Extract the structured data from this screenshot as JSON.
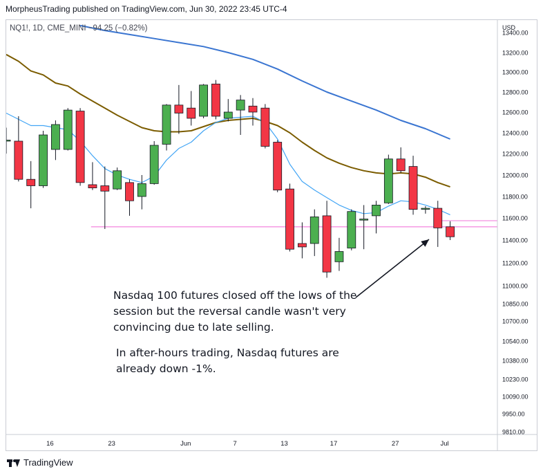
{
  "header": {
    "published": "MorpheusTrading published on TradingView.com, Jun 30, 2022 23:45 UTC-4"
  },
  "legend": {
    "symbol": "NQ1!, 1D, CME_MINI",
    "change": "−94.25 (−0.82%)"
  },
  "annotations": {
    "main": "Nasdaq 100 futures closed off the lows of the\nsession but the reversal candle wasn't very\nconvincing due to late selling.",
    "after_hours": "In after-hours trading, Nasdaq futures are\nalready down -1%."
  },
  "footer": {
    "brand": "TradingView"
  },
  "colors": {
    "up": "#4caf50",
    "down": "#f23645",
    "ma_fast": "#42a5f5",
    "ma_mid": "#7b5c00",
    "ma_slow": "#3a75d1",
    "support": "#f48fe0"
  },
  "chart_data": {
    "type": "candlestick",
    "currency": "USD",
    "y_ticks": [
      "13400.00",
      "13200.00",
      "13000.00",
      "12800.00",
      "12600.00",
      "12400.00",
      "12200.00",
      "12000.00",
      "11800.00",
      "11600.00",
      "11400.00",
      "11200.00",
      "11000.00",
      "10850.00",
      "10700.00",
      "10540.00",
      "10380.00",
      "10230.00",
      "10090.00",
      "9950.00",
      "9810.00"
    ],
    "x_ticks": [
      {
        "label": "16",
        "i": 4
      },
      {
        "label": "23",
        "i": 9
      },
      {
        "label": "Jun",
        "i": 15
      },
      {
        "label": "7",
        "i": 19
      },
      {
        "label": "13",
        "i": 23
      },
      {
        "label": "17",
        "i": 27
      },
      {
        "label": "27",
        "i": 32
      },
      {
        "label": "Jul",
        "i": 36
      }
    ],
    "candles": [
      {
        "o": 12330,
        "h": 12450,
        "l": 12200,
        "c": 12330
      },
      {
        "o": 12320,
        "h": 12560,
        "l": 11940,
        "c": 11960
      },
      {
        "o": 11960,
        "h": 12130,
        "l": 11690,
        "c": 11900
      },
      {
        "o": 11900,
        "h": 12420,
        "l": 11880,
        "c": 12380
      },
      {
        "o": 12240,
        "h": 12520,
        "l": 12140,
        "c": 12480
      },
      {
        "o": 12240,
        "h": 12640,
        "l": 12230,
        "c": 12620
      },
      {
        "o": 12610,
        "h": 12640,
        "l": 11900,
        "c": 11930
      },
      {
        "o": 11910,
        "h": 12120,
        "l": 11860,
        "c": 11880
      },
      {
        "o": 11900,
        "h": 12080,
        "l": 11500,
        "c": 11850
      },
      {
        "o": 11870,
        "h": 12070,
        "l": 11860,
        "c": 12040
      },
      {
        "o": 11930,
        "h": 11960,
        "l": 11620,
        "c": 11760
      },
      {
        "o": 11800,
        "h": 12000,
        "l": 11680,
        "c": 11920
      },
      {
        "o": 11920,
        "h": 12320,
        "l": 11910,
        "c": 12280
      },
      {
        "o": 12290,
        "h": 12680,
        "l": 12230,
        "c": 12670
      },
      {
        "o": 12670,
        "h": 12870,
        "l": 12390,
        "c": 12590
      },
      {
        "o": 12640,
        "h": 12810,
        "l": 12470,
        "c": 12540
      },
      {
        "o": 12560,
        "h": 12880,
        "l": 12540,
        "c": 12870
      },
      {
        "o": 12880,
        "h": 12920,
        "l": 12530,
        "c": 12560
      },
      {
        "o": 12540,
        "h": 12730,
        "l": 12510,
        "c": 12600
      },
      {
        "o": 12620,
        "h": 12770,
        "l": 12380,
        "c": 12720
      },
      {
        "o": 12660,
        "h": 12740,
        "l": 12470,
        "c": 12600
      },
      {
        "o": 12640,
        "h": 12680,
        "l": 12250,
        "c": 12270
      },
      {
        "o": 12310,
        "h": 12330,
        "l": 11840,
        "c": 11860
      },
      {
        "o": 11870,
        "h": 11920,
        "l": 11300,
        "c": 11320
      },
      {
        "o": 11370,
        "h": 11560,
        "l": 11240,
        "c": 11340
      },
      {
        "o": 11370,
        "h": 11680,
        "l": 11260,
        "c": 11610
      },
      {
        "o": 11620,
        "h": 11760,
        "l": 11070,
        "c": 11120
      },
      {
        "o": 11210,
        "h": 11420,
        "l": 11130,
        "c": 11300
      },
      {
        "o": 11330,
        "h": 11680,
        "l": 11310,
        "c": 11660
      },
      {
        "o": 11580,
        "h": 11720,
        "l": 11320,
        "c": 11590
      },
      {
        "o": 11620,
        "h": 11760,
        "l": 11460,
        "c": 11720
      },
      {
        "o": 11740,
        "h": 12190,
        "l": 11730,
        "c": 12150
      },
      {
        "o": 12150,
        "h": 12260,
        "l": 12020,
        "c": 12040
      },
      {
        "o": 12080,
        "h": 12180,
        "l": 11630,
        "c": 11680
      },
      {
        "o": 11690,
        "h": 11710,
        "l": 11640,
        "c": 11690
      },
      {
        "o": 11690,
        "h": 11760,
        "l": 11340,
        "c": 11510
      },
      {
        "o": 11520,
        "h": 11570,
        "l": 11400,
        "c": 11430
      }
    ],
    "ma_fast": [
      [
        0,
        12590
      ],
      [
        1,
        12530
      ],
      [
        2,
        12470
      ],
      [
        3,
        12470
      ],
      [
        4,
        12450
      ],
      [
        5,
        12430
      ],
      [
        6,
        12320
      ],
      [
        7,
        12180
      ],
      [
        8,
        12060
      ],
      [
        9,
        12000
      ],
      [
        10,
        11960
      ],
      [
        11,
        11930
      ],
      [
        12,
        11990
      ],
      [
        13,
        12140
      ],
      [
        14,
        12250
      ],
      [
        15,
        12310
      ],
      [
        16,
        12420
      ],
      [
        17,
        12500
      ],
      [
        18,
        12540
      ],
      [
        19,
        12550
      ],
      [
        20,
        12560
      ],
      [
        21,
        12500
      ],
      [
        22,
        12340
      ],
      [
        23,
        12100
      ],
      [
        24,
        11940
      ],
      [
        25,
        11860
      ],
      [
        26,
        11790
      ],
      [
        27,
        11720
      ],
      [
        28,
        11670
      ],
      [
        29,
        11640
      ],
      [
        30,
        11650
      ],
      [
        31,
        11710
      ],
      [
        32,
        11760
      ],
      [
        33,
        11750
      ],
      [
        34,
        11720
      ],
      [
        35,
        11680
      ],
      [
        36,
        11630
      ]
    ],
    "ma_mid": [
      [
        0,
        13180
      ],
      [
        1,
        13110
      ],
      [
        2,
        13010
      ],
      [
        3,
        12970
      ],
      [
        4,
        12890
      ],
      [
        5,
        12860
      ],
      [
        6,
        12780
      ],
      [
        7,
        12710
      ],
      [
        8,
        12640
      ],
      [
        9,
        12570
      ],
      [
        10,
        12510
      ],
      [
        11,
        12450
      ],
      [
        12,
        12420
      ],
      [
        13,
        12410
      ],
      [
        14,
        12410
      ],
      [
        15,
        12420
      ],
      [
        16,
        12460
      ],
      [
        17,
        12500
      ],
      [
        18,
        12520
      ],
      [
        19,
        12530
      ],
      [
        20,
        12540
      ],
      [
        21,
        12510
      ],
      [
        22,
        12470
      ],
      [
        23,
        12400
      ],
      [
        24,
        12310
      ],
      [
        25,
        12230
      ],
      [
        26,
        12160
      ],
      [
        27,
        12110
      ],
      [
        28,
        12070
      ],
      [
        29,
        12040
      ],
      [
        30,
        12020
      ],
      [
        31,
        12010
      ],
      [
        32,
        12020
      ],
      [
        33,
        12010
      ],
      [
        34,
        11980
      ],
      [
        35,
        11930
      ],
      [
        36,
        11890
      ]
    ],
    "ma_slow": [
      [
        6,
        13470
      ],
      [
        8,
        13420
      ],
      [
        10,
        13380
      ],
      [
        12,
        13340
      ],
      [
        14,
        13300
      ],
      [
        16,
        13260
      ],
      [
        18,
        13200
      ],
      [
        20,
        13130
      ],
      [
        22,
        13030
      ],
      [
        24,
        12910
      ],
      [
        26,
        12800
      ],
      [
        28,
        12710
      ],
      [
        30,
        12620
      ],
      [
        32,
        12520
      ],
      [
        34,
        12440
      ],
      [
        36,
        12340
      ]
    ],
    "support_level": 11520,
    "support_from_i": 8,
    "resistance_stub_level": 11575,
    "resistance_stub_from_i": 35
  }
}
